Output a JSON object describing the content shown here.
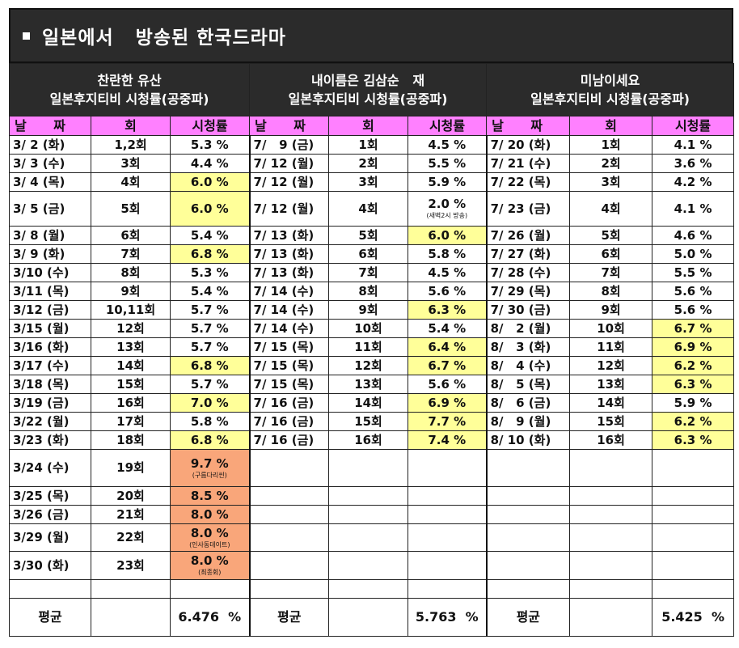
{
  "title": "일본에서   방송된 한국드라마",
  "dramas": [
    {
      "name": "찬란한 유산",
      "channel": "일본후지티비 시청률(공중파)"
    },
    {
      "name": "내이름은 김삼순   재",
      "channel": "일본후지티비 시청률(공중파)"
    },
    {
      "name": "미남이세요",
      "channel": "일본후지티비 시청률(공중파)"
    }
  ],
  "columns": {
    "date": "날      짜",
    "ep": "회",
    "rating": "시청률"
  },
  "rows": [
    {
      "c": [
        [
          "3/ 2 (화)",
          "1,2회",
          "5.3 %",
          ""
        ],
        [
          "7/   9 (금)",
          "1회",
          "4.5 %",
          ""
        ],
        [
          "7/ 20 (화)",
          "1회",
          "4.1 %",
          ""
        ]
      ]
    },
    {
      "c": [
        [
          "3/ 3 (수)",
          "3회",
          "4.4 %",
          ""
        ],
        [
          "7/ 12 (월)",
          "2회",
          "5.5 %",
          ""
        ],
        [
          "7/ 21 (수)",
          "2회",
          "3.6 %",
          ""
        ]
      ]
    },
    {
      "c": [
        [
          "3/ 4 (목)",
          "4회",
          "6.0 %",
          "yel"
        ],
        [
          "7/ 12 (월)",
          "3회",
          "5.9 %",
          ""
        ],
        [
          "7/ 22 (목)",
          "3회",
          "4.2 %",
          ""
        ]
      ]
    },
    {
      "c": [
        [
          "3/ 5 (금)",
          "5회",
          "6.0 %",
          "yel"
        ],
        [
          "7/ 12 (월)",
          "4회",
          "2.0 %",
          ""
        ],
        [
          "7/ 23 (금)",
          "4회",
          "4.1 %",
          ""
        ]
      ],
      "notes": [
        "",
        "(새벽2시 방송)",
        ""
      ]
    },
    {
      "c": [
        [
          "3/ 8 (월)",
          "6회",
          "5.4 %",
          ""
        ],
        [
          "7/ 13 (화)",
          "5회",
          "6.0 %",
          "yel"
        ],
        [
          "7/ 26 (월)",
          "5회",
          "4.6 %",
          ""
        ]
      ]
    },
    {
      "c": [
        [
          "3/ 9 (화)",
          "7회",
          "6.8 %",
          "yel"
        ],
        [
          "7/ 13 (화)",
          "6회",
          "5.8 %",
          ""
        ],
        [
          "7/ 27 (화)",
          "6회",
          "5.0 %",
          ""
        ]
      ]
    },
    {
      "c": [
        [
          "3/10 (수)",
          "8회",
          "5.3 %",
          ""
        ],
        [
          "7/ 13 (화)",
          "7회",
          "4.5 %",
          ""
        ],
        [
          "7/ 28 (수)",
          "7회",
          "5.5 %",
          ""
        ]
      ]
    },
    {
      "c": [
        [
          "3/11 (목)",
          "9회",
          "5.4 %",
          ""
        ],
        [
          "7/ 14 (수)",
          "8회",
          "5.6 %",
          ""
        ],
        [
          "7/ 29 (목)",
          "8회",
          "5.6 %",
          ""
        ]
      ]
    },
    {
      "c": [
        [
          "3/12 (금)",
          "10,11회",
          "5.7 %",
          ""
        ],
        [
          "7/ 14 (수)",
          "9회",
          "6.3 %",
          "yel"
        ],
        [
          "7/ 30 (금)",
          "9회",
          "5.6 %",
          ""
        ]
      ]
    },
    {
      "c": [
        [
          "3/15 (월)",
          "12회",
          "5.7 %",
          ""
        ],
        [
          "7/ 14 (수)",
          "10회",
          "5.4 %",
          ""
        ],
        [
          "8/   2 (월)",
          "10회",
          "6.7 %",
          "yel"
        ]
      ]
    },
    {
      "c": [
        [
          "3/16 (화)",
          "13회",
          "5.7 %",
          ""
        ],
        [
          "7/ 15 (목)",
          "11회",
          "6.4 %",
          "yel"
        ],
        [
          "8/   3 (화)",
          "11회",
          "6.9 %",
          "yel"
        ]
      ]
    },
    {
      "c": [
        [
          "3/17 (수)",
          "14회",
          "6.8 %",
          "yel"
        ],
        [
          "7/ 15 (목)",
          "12회",
          "6.7 %",
          "yel"
        ],
        [
          "8/   4 (수)",
          "12회",
          "6.2 %",
          "yel"
        ]
      ]
    },
    {
      "c": [
        [
          "3/18 (목)",
          "15회",
          "5.7 %",
          ""
        ],
        [
          "7/ 15 (목)",
          "13회",
          "5.6 %",
          ""
        ],
        [
          "8/   5 (목)",
          "13회",
          "6.3 %",
          "yel"
        ]
      ]
    },
    {
      "c": [
        [
          "3/19 (금)",
          "16회",
          "7.0 %",
          "yel"
        ],
        [
          "7/ 16 (금)",
          "14회",
          "6.9 %",
          "yel"
        ],
        [
          "8/   6 (금)",
          "14회",
          "5.9 %",
          ""
        ]
      ]
    },
    {
      "c": [
        [
          "3/22 (월)",
          "17회",
          "5.8 %",
          ""
        ],
        [
          "7/ 16 (금)",
          "15회",
          "7.7 %",
          "yel"
        ],
        [
          "8/   9 (월)",
          "15회",
          "6.2 %",
          "yel"
        ]
      ]
    },
    {
      "c": [
        [
          "3/23 (화)",
          "18회",
          "6.8 %",
          "yel"
        ],
        [
          "7/ 16 (금)",
          "16회",
          "7.4 %",
          "yel"
        ],
        [
          "8/ 10 (화)",
          "16회",
          "6.3 %",
          "yel"
        ]
      ]
    },
    {
      "c": [
        [
          "3/24 (수)",
          "19회",
          "9.7 %",
          "org"
        ],
        [
          "",
          "",
          "",
          ""
        ],
        [
          "",
          "",
          "",
          ""
        ]
      ],
      "notes": [
        "(구름다리씬)",
        "",
        ""
      ]
    },
    {
      "c": [
        [
          "3/25 (목)",
          "20회",
          "8.5 %",
          "org"
        ],
        [
          "",
          "",
          "",
          ""
        ],
        [
          "",
          "",
          "",
          ""
        ]
      ]
    },
    {
      "c": [
        [
          "3/26 (금)",
          "21회",
          "8.0 %",
          "org"
        ],
        [
          "",
          "",
          "",
          ""
        ],
        [
          "",
          "",
          "",
          ""
        ]
      ]
    },
    {
      "c": [
        [
          "3/29 (월)",
          "22회",
          "8.0 %",
          "org"
        ],
        [
          "",
          "",
          "",
          ""
        ],
        [
          "",
          "",
          "",
          ""
        ]
      ],
      "notes": [
        "(인사동데이트)",
        "",
        ""
      ]
    },
    {
      "c": [
        [
          "3/30 (화)",
          "23회",
          "8.0 %",
          "org"
        ],
        [
          "",
          "",
          "",
          ""
        ],
        [
          "",
          "",
          "",
          ""
        ]
      ],
      "notes": [
        "(최종회)",
        "",
        ""
      ]
    },
    {
      "c": [
        [
          "",
          "",
          "",
          ""
        ],
        [
          "",
          "",
          "",
          ""
        ],
        [
          "",
          "",
          "",
          ""
        ]
      ]
    }
  ],
  "averages": {
    "label": "평균",
    "values": [
      "6.476  %",
      "5.763  %",
      "5.425  %"
    ]
  }
}
